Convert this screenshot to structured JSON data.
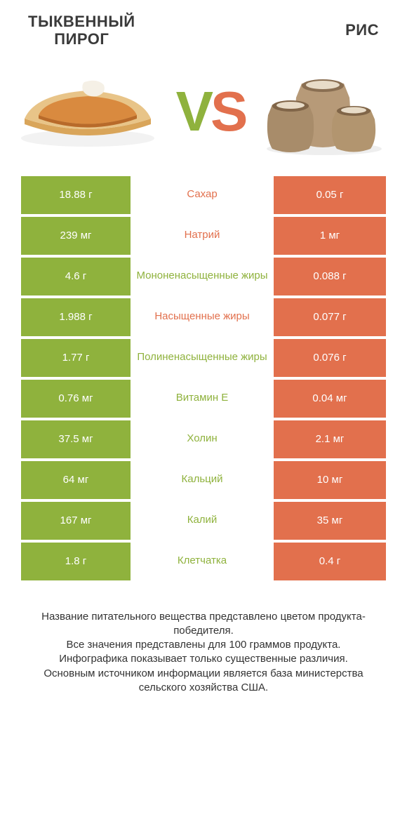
{
  "header": {
    "left_title_line1": "ТЫКВЕННЫЙ",
    "left_title_line2": "ПИРОГ",
    "right_title": "РИС"
  },
  "vs": {
    "v": "V",
    "s": "S"
  },
  "colors": {
    "green": "#8fb23d",
    "orange": "#e2704d",
    "white": "#ffffff"
  },
  "rows": [
    {
      "left": "18.88 г",
      "label": "Сахар",
      "right": "0.05 г",
      "winner": "left"
    },
    {
      "left": "239 мг",
      "label": "Натрий",
      "right": "1 мг",
      "winner": "left"
    },
    {
      "left": "4.6 г",
      "label": "Мононенасыщенные жиры",
      "right": "0.088 г",
      "winner": "right"
    },
    {
      "left": "1.988 г",
      "label": "Насыщенные жиры",
      "right": "0.077 г",
      "winner": "left"
    },
    {
      "left": "1.77 г",
      "label": "Полиненасыщенные жиры",
      "right": "0.076 г",
      "winner": "right"
    },
    {
      "left": "0.76 мг",
      "label": "Витамин E",
      "right": "0.04 мг",
      "winner": "right"
    },
    {
      "left": "37.5 мг",
      "label": "Холин",
      "right": "2.1 мг",
      "winner": "right"
    },
    {
      "left": "64 мг",
      "label": "Кальций",
      "right": "10 мг",
      "winner": "right"
    },
    {
      "left": "167 мг",
      "label": "Калий",
      "right": "35 мг",
      "winner": "right"
    },
    {
      "left": "1.8 г",
      "label": "Клетчатка",
      "right": "0.4 г",
      "winner": "right"
    }
  ],
  "footer": {
    "line1": "Название питательного вещества представлено цветом продукта-победителя.",
    "line2": "Все значения представлены для 100 граммов продукта.",
    "line3": "Инфографика показывает только существенные различия.",
    "line4": "Основным источником информации является база министерства сельского хозяйства США."
  }
}
